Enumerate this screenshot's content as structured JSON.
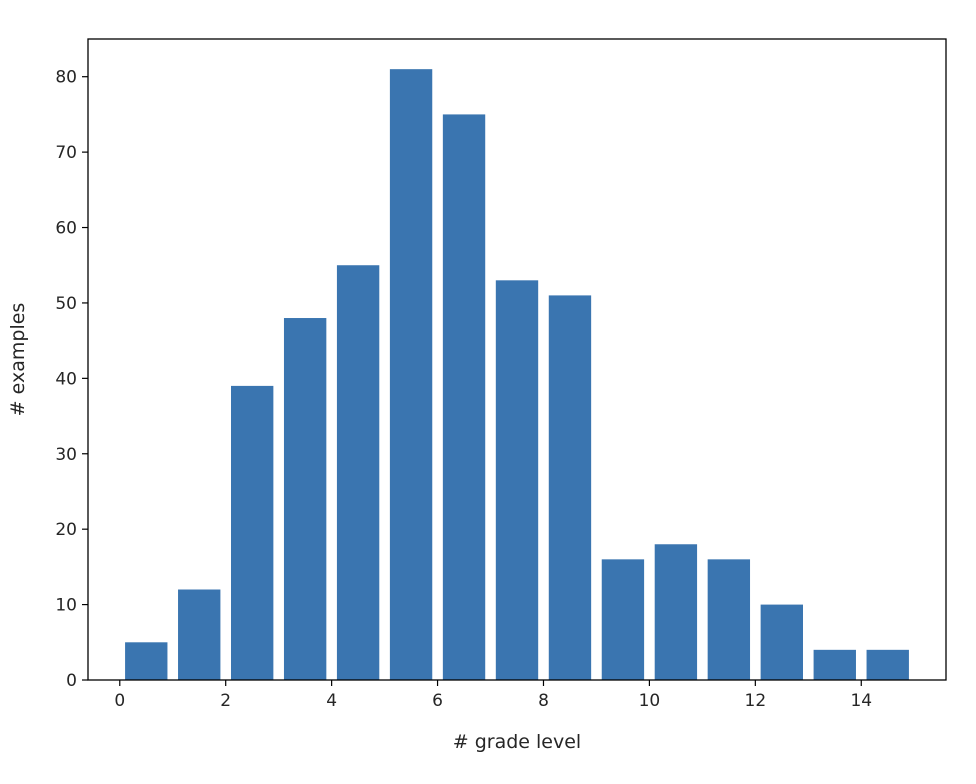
{
  "chart_data": {
    "type": "bar",
    "title": "",
    "xlabel": "# grade level",
    "ylabel": "# examples",
    "x": [
      0.5,
      1.5,
      2.5,
      3.5,
      4.5,
      5.5,
      6.5,
      7.5,
      8.5,
      9.5,
      10.5,
      11.5,
      12.5,
      13.5,
      14.5
    ],
    "values": [
      5,
      12,
      39,
      48,
      55,
      81,
      75,
      53,
      51,
      16,
      18,
      16,
      10,
      4,
      4
    ],
    "bar_width": 0.8,
    "xlim": [
      -0.6,
      15.6
    ],
    "ylim": [
      0,
      85
    ],
    "xticks": [
      0,
      2,
      4,
      6,
      8,
      10,
      12,
      14
    ],
    "xtick_labels": [
      "0",
      "2",
      "4",
      "6",
      "8",
      "10",
      "12",
      "14"
    ],
    "yticks": [
      0,
      10,
      20,
      30,
      40,
      50,
      60,
      70,
      80
    ],
    "ytick_labels": [
      "0",
      "10",
      "20",
      "30",
      "40",
      "50",
      "60",
      "70",
      "80"
    ],
    "bar_color": "#3a75b0",
    "grid": false,
    "legend": "none"
  }
}
